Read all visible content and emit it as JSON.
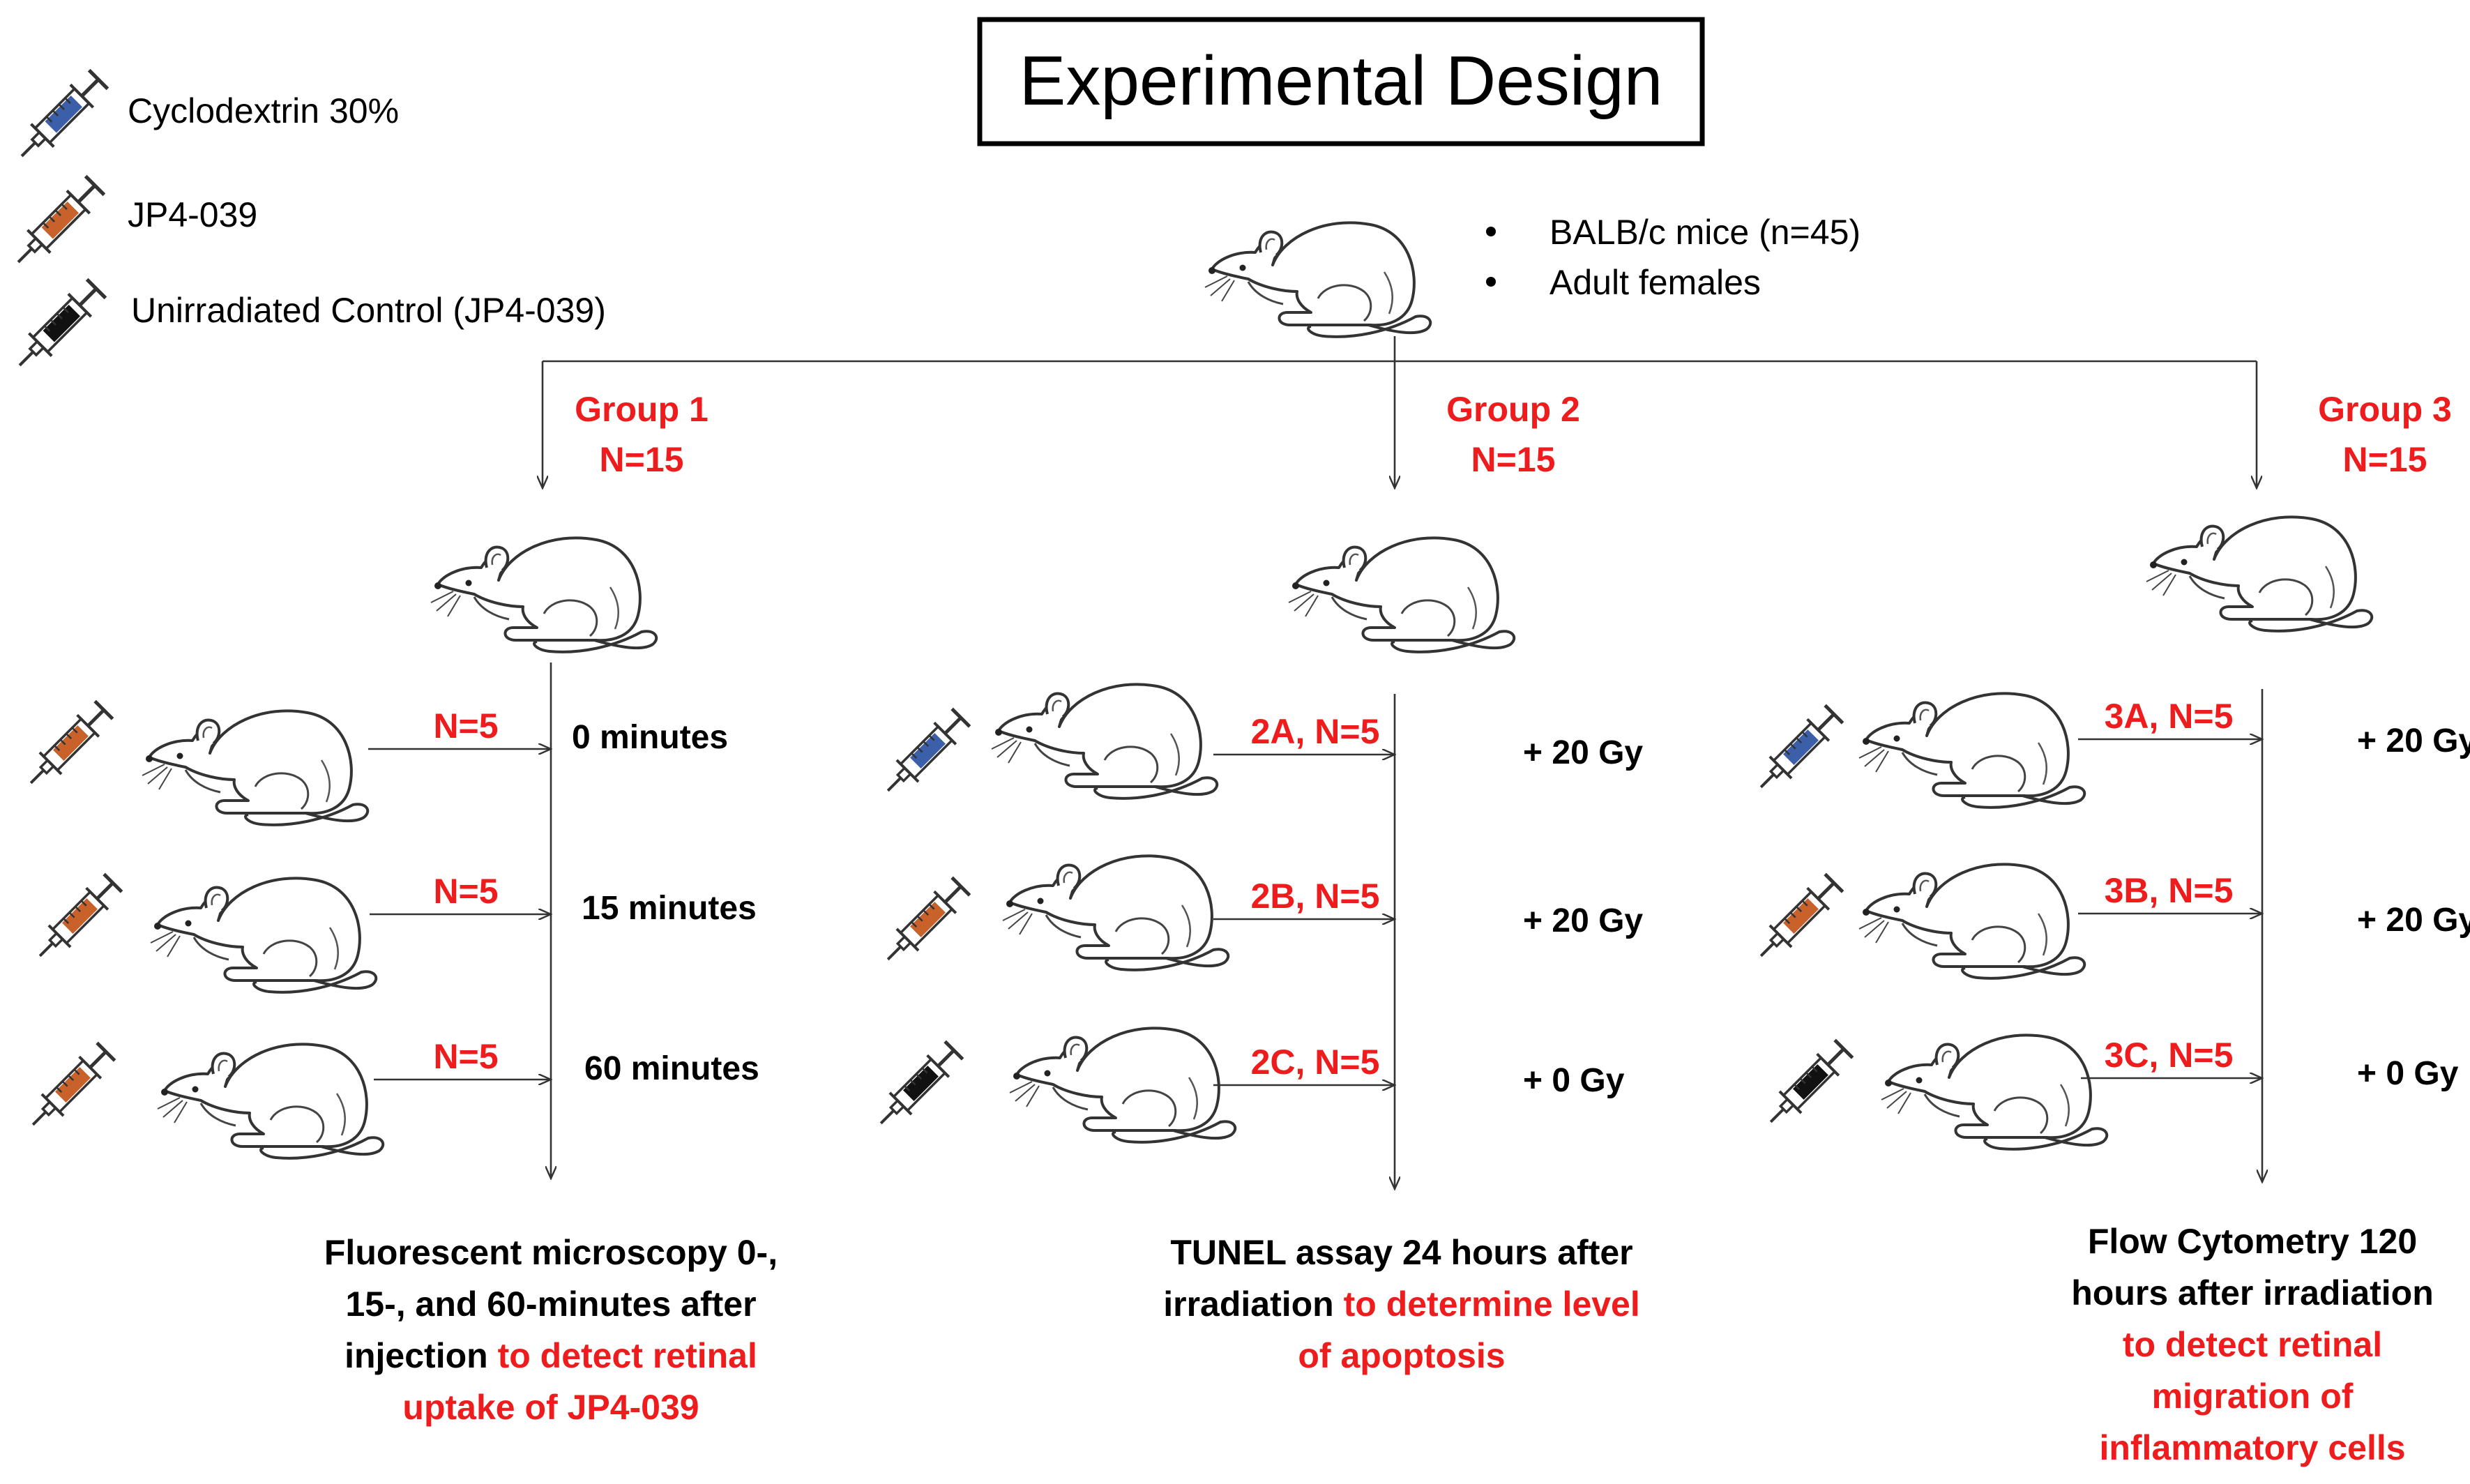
{
  "title": "Experimental Design",
  "legend": [
    {
      "label": "Cyclodextrin 30%",
      "icon": "syringe-blue-icon",
      "color": "#3b5fa8"
    },
    {
      "label": "JP4-039",
      "icon": "syringe-orange-icon",
      "color": "#c8612a"
    },
    {
      "label": "Unirradiated Control (JP4-039)",
      "icon": "syringe-black-icon",
      "color": "#111111"
    }
  ],
  "cohort": {
    "bullets": [
      "BALB/c mice (n=45)",
      "Adult females"
    ]
  },
  "groups": [
    {
      "title": "Group 1",
      "n": "N=15",
      "rows": [
        {
          "label": "N=5",
          "result": "0 minutes",
          "syringe": "orange"
        },
        {
          "label": "N=5",
          "result": "15 minutes",
          "syringe": "orange"
        },
        {
          "label": "N=5",
          "result": "60 minutes",
          "syringe": "orange"
        }
      ],
      "outcome_black": "Fluorescent microscopy 0-, 15-, and 60-minutes after injection",
      "outcome_red": "to detect retinal uptake of JP4-039",
      "outcome_lines": [
        [
          {
            "t": "Fluorescent microscopy 0-,",
            "red": false
          }
        ],
        [
          {
            "t": "15-, and 60-minutes after",
            "red": false
          }
        ],
        [
          {
            "t": "injection ",
            "red": false
          },
          {
            "t": "to detect retinal",
            "red": true
          }
        ],
        [
          {
            "t": "uptake of JP4-039",
            "red": true
          }
        ]
      ]
    },
    {
      "title": "Group 2",
      "n": "N=15",
      "rows": [
        {
          "label": "2A, N=5",
          "result": "+ 20 Gy",
          "syringe": "blue"
        },
        {
          "label": "2B, N=5",
          "result": "+ 20 Gy",
          "syringe": "orange"
        },
        {
          "label": "2C, N=5",
          "result": "+ 0 Gy",
          "syringe": "black"
        }
      ],
      "outcome_black": "TUNEL assay 24 hours after irradiation",
      "outcome_red": "to determine level of apoptosis",
      "outcome_lines": [
        [
          {
            "t": "TUNEL assay 24 hours after",
            "red": false
          }
        ],
        [
          {
            "t": "irradiation ",
            "red": false
          },
          {
            "t": "to determine level",
            "red": true
          }
        ],
        [
          {
            "t": "of apoptosis",
            "red": true
          }
        ]
      ]
    },
    {
      "title": "Group 3",
      "n": "N=15",
      "rows": [
        {
          "label": "3A, N=5",
          "result": "+ 20 Gy",
          "syringe": "blue"
        },
        {
          "label": "3B, N=5",
          "result": "+ 20 Gy",
          "syringe": "orange"
        },
        {
          "label": "3C, N=5",
          "result": "+ 0 Gy",
          "syringe": "black"
        }
      ],
      "outcome_black": "Flow Cytometry 120 hours after irradiation",
      "outcome_red": "to detect retinal migration of inflammatory cells",
      "outcome_lines": [
        [
          {
            "t": "Flow Cytometry 120",
            "red": false
          }
        ],
        [
          {
            "t": "hours after irradiation",
            "red": false
          }
        ],
        [
          {
            "t": "to detect retinal",
            "red": true
          }
        ],
        [
          {
            "t": "migration of",
            "red": true
          }
        ],
        [
          {
            "t": "inflammatory cells",
            "red": true
          }
        ]
      ]
    }
  ],
  "colors": {
    "accent_red": "#ee1c1c",
    "blue": "#3b5fa8",
    "orange": "#c8612a",
    "black": "#111111"
  }
}
